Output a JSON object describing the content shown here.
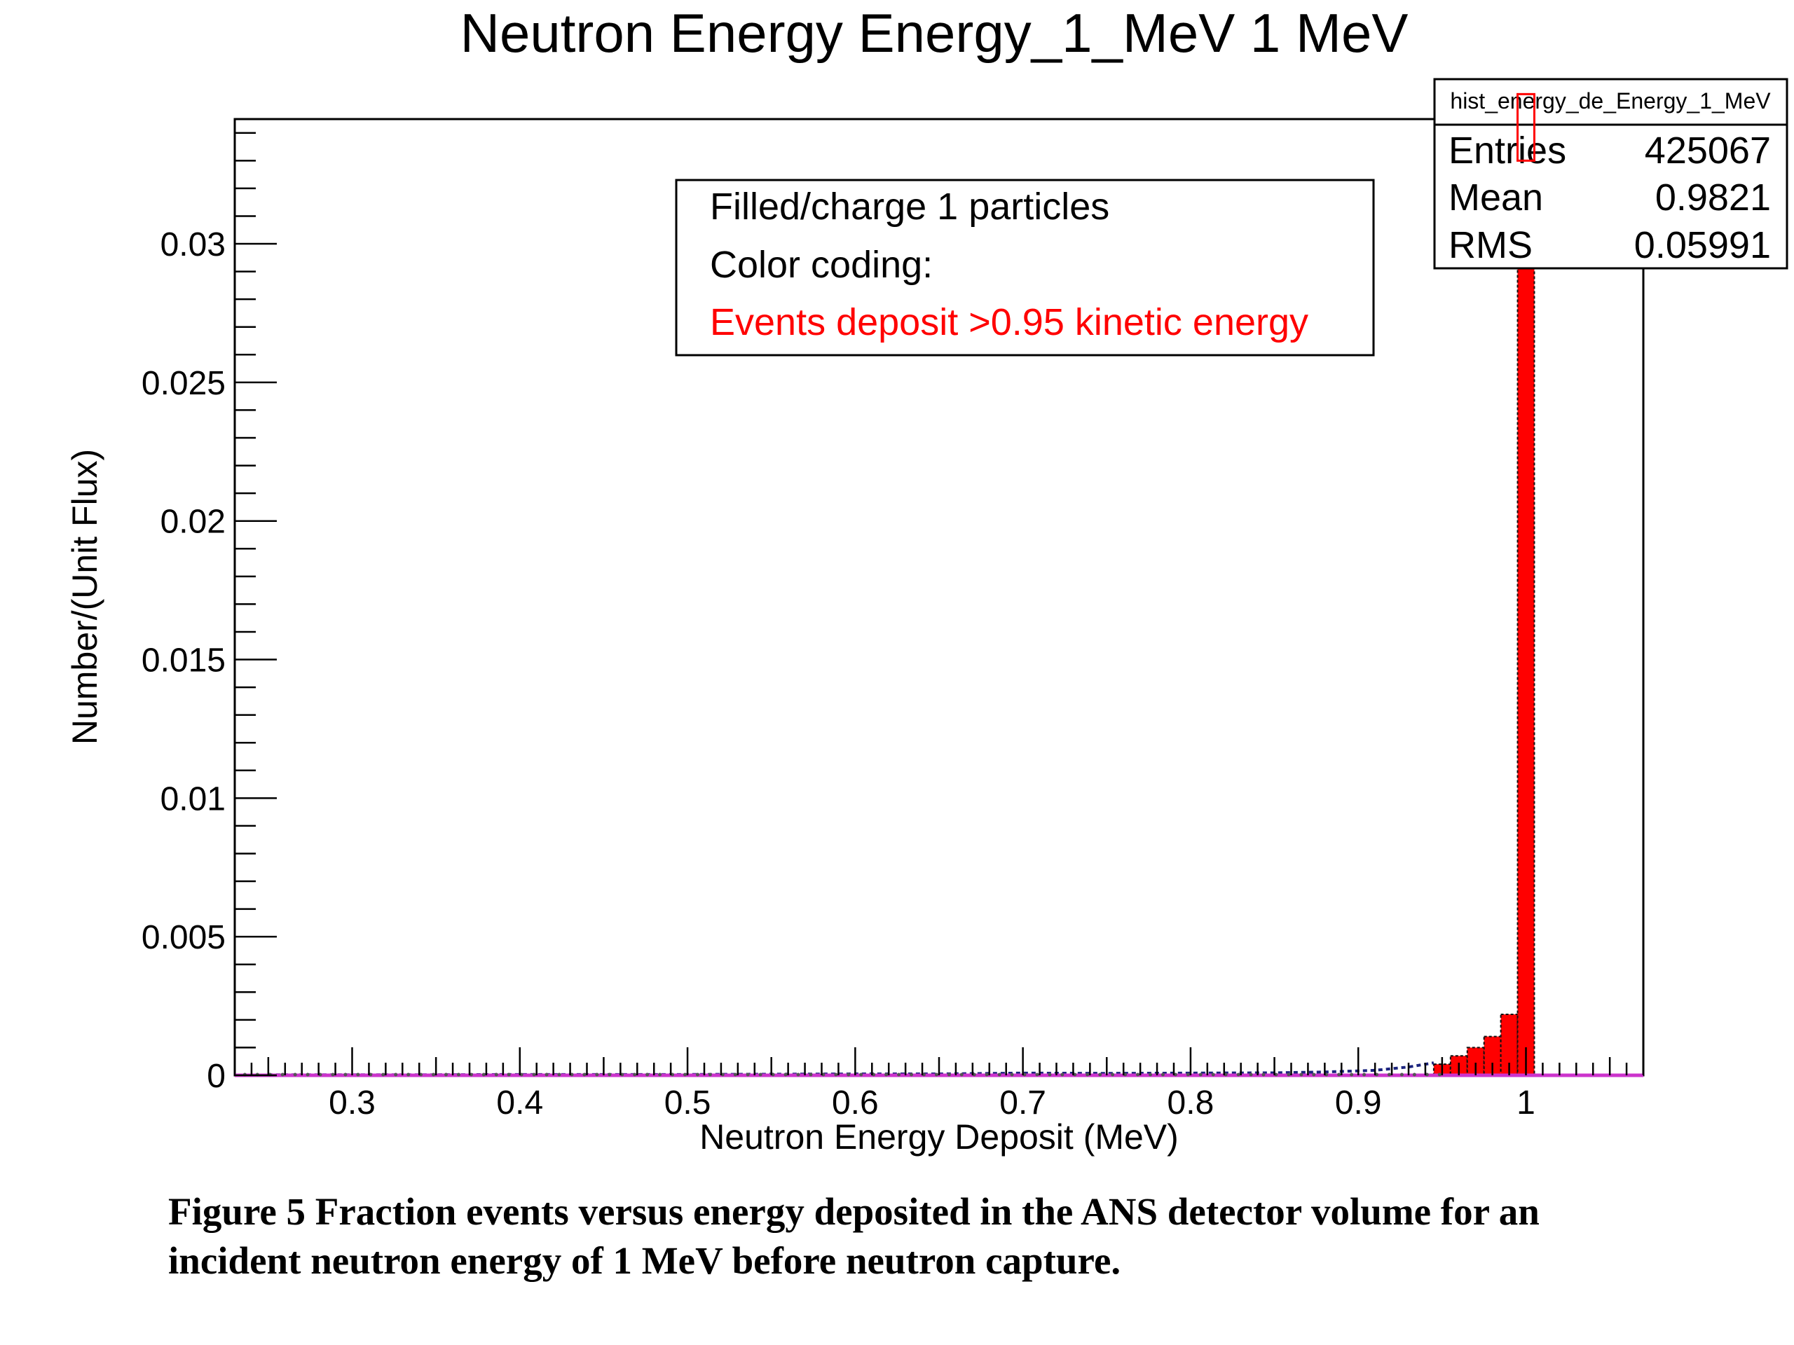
{
  "caption": "Figure 5 Fraction events versus energy deposited in the ANS detector volume for an incident neutron energy of 1 MeV before neutron capture.",
  "chart_data": {
    "type": "bar",
    "title": "Neutron Energy Energy_1_MeV 1 MeV",
    "xlabel": "Neutron Energy Deposit (MeV)",
    "ylabel": "Number/(Unit Flux)",
    "xlim": [
      0.23,
      1.07
    ],
    "ylim": [
      0,
      0.0345
    ],
    "x_ticks": [
      {
        "value": 0.3,
        "label": "0.3"
      },
      {
        "value": 0.4,
        "label": "0.4"
      },
      {
        "value": 0.5,
        "label": "0.5"
      },
      {
        "value": 0.6,
        "label": "0.6"
      },
      {
        "value": 0.7,
        "label": "0.7"
      },
      {
        "value": 0.8,
        "label": "0.8"
      },
      {
        "value": 0.9,
        "label": "0.9"
      },
      {
        "value": 1.0,
        "label": "1"
      }
    ],
    "y_ticks": [
      {
        "value": 0,
        "label": "0"
      },
      {
        "value": 0.005,
        "label": "0.005"
      },
      {
        "value": 0.01,
        "label": "0.01"
      },
      {
        "value": 0.015,
        "label": "0.015"
      },
      {
        "value": 0.02,
        "label": "0.02"
      },
      {
        "value": 0.025,
        "label": "0.025"
      },
      {
        "value": 0.03,
        "label": "0.03"
      }
    ],
    "legend": {
      "placement": "top-center",
      "lines": [
        {
          "text": "Filled/charge 1 particles",
          "color": "#000000"
        },
        {
          "text": "Color coding:",
          "color": "#000000"
        },
        {
          "text": "Events deposit >0.95 kinetic energy",
          "color": "#ff0000"
        }
      ]
    },
    "stats_box": {
      "placement": "top-right",
      "name": "hist_energy_de_Energy_1_MeV",
      "rows": [
        {
          "label": "Entries",
          "value": "425067"
        },
        {
          "label": "Mean",
          "value": "0.9821"
        },
        {
          "label": "RMS",
          "value": "0.05991"
        }
      ]
    },
    "bin_width": 0.01,
    "series": [
      {
        "color": "#ff0000",
        "bins": [
          {
            "x": 0.95,
            "y": 0.0004
          },
          {
            "x": 0.96,
            "y": 0.0007
          },
          {
            "x": 0.97,
            "y": 0.001
          },
          {
            "x": 0.98,
            "y": 0.0014
          },
          {
            "x": 0.99,
            "y": 0.0022
          },
          {
            "x": 1.0,
            "y": 0.033
          }
        ]
      },
      {
        "color": "#1a237e",
        "values": [
          {
            "x": 0.25,
            "y": 2e-05
          },
          {
            "x": 0.3,
            "y": 2e-05
          },
          {
            "x": 0.35,
            "y": 2e-05
          },
          {
            "x": 0.4,
            "y": 3e-05
          },
          {
            "x": 0.45,
            "y": 3e-05
          },
          {
            "x": 0.5,
            "y": 3e-05
          },
          {
            "x": 0.55,
            "y": 4e-05
          },
          {
            "x": 0.6,
            "y": 5e-05
          },
          {
            "x": 0.65,
            "y": 5e-05
          },
          {
            "x": 0.7,
            "y": 8e-05
          },
          {
            "x": 0.75,
            "y": 7e-05
          },
          {
            "x": 0.8,
            "y": 8e-05
          },
          {
            "x": 0.85,
            "y": 9e-05
          },
          {
            "x": 0.88,
            "y": 0.00012
          },
          {
            "x": 0.91,
            "y": 0.00018
          },
          {
            "x": 0.93,
            "y": 0.0003
          },
          {
            "x": 0.945,
            "y": 0.00045
          }
        ]
      },
      {
        "color": "#cc33cc",
        "values": [
          {
            "x": 0.23,
            "y": 0.0
          },
          {
            "x": 1.07,
            "y": 0.0
          }
        ]
      }
    ],
    "grid": false
  }
}
